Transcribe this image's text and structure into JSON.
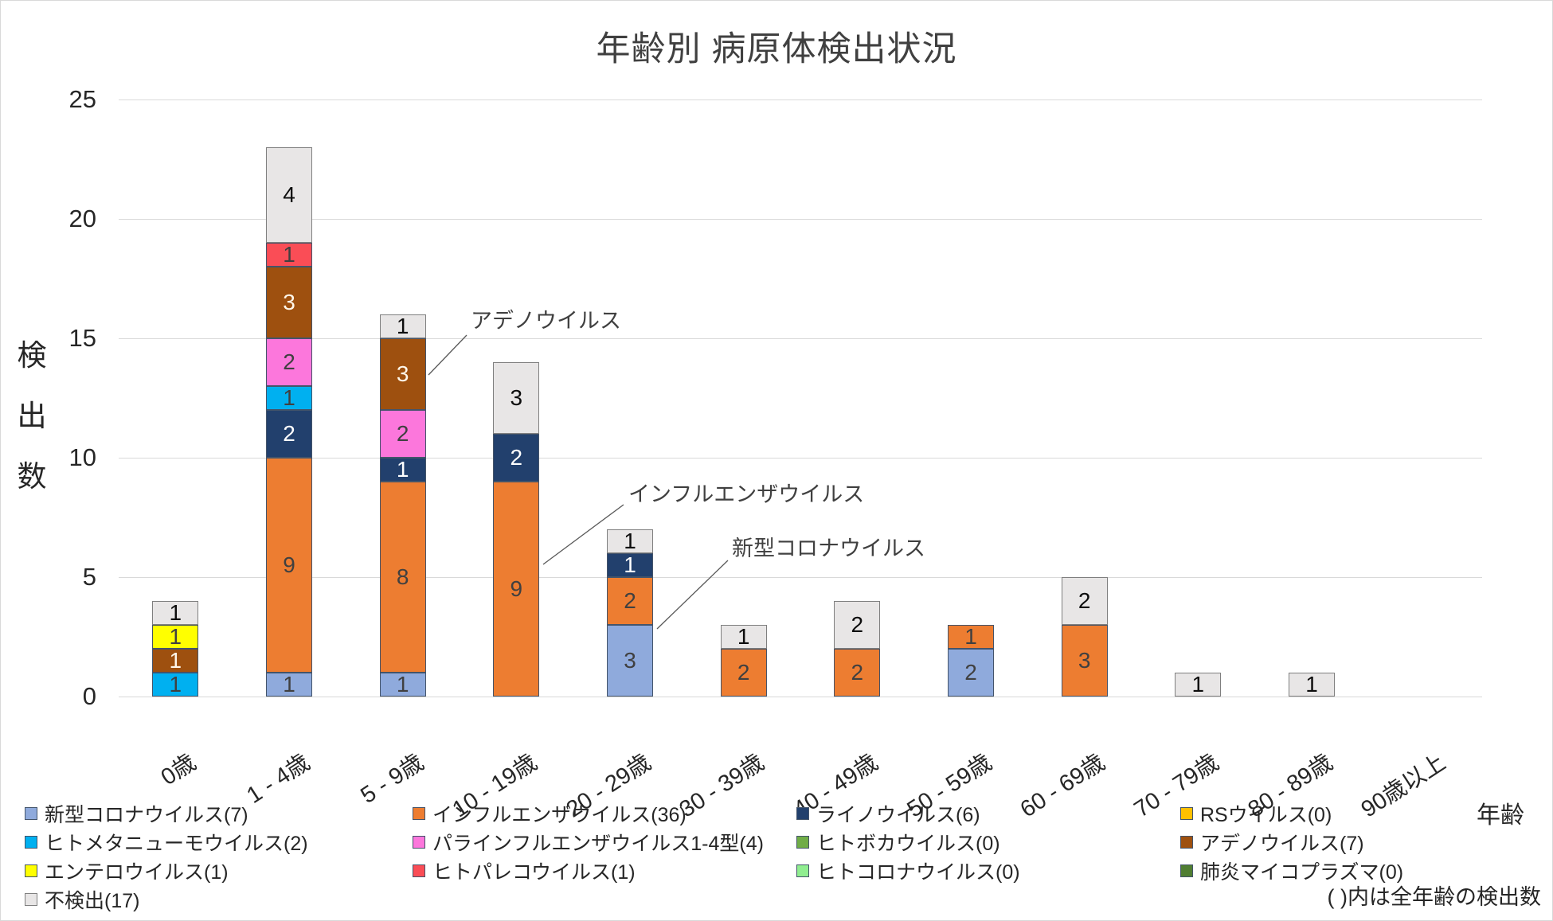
{
  "chart_data": {
    "type": "bar",
    "subtype": "stacked-vertical",
    "title": "年齢別 病原体検出状況",
    "ylabel": "検出数",
    "xlabel": "年齢",
    "ylim": [
      0,
      25
    ],
    "yticks": [
      0,
      5,
      10,
      15,
      20,
      25
    ],
    "grid": "horizontal",
    "note": "( )内は全年齢の検出数",
    "categories": [
      "0歳",
      "1 - 4歳",
      "5 - 9歳",
      "10 - 19歳",
      "20 - 29歳",
      "30 - 39歳",
      "40 - 49歳",
      "50 - 59歳",
      "60 - 69歳",
      "70 - 79歳",
      "80 - 89歳",
      "90歳以上"
    ],
    "series": [
      {
        "name": "新型コロナウイルス",
        "total": 7,
        "color": "#8FAADC",
        "border": "#44546A",
        "label_color": "#404040",
        "values": [
          0,
          1,
          1,
          0,
          3,
          0,
          0,
          2,
          0,
          0,
          0,
          0
        ]
      },
      {
        "name": "インフルエンザウイルス",
        "total": 36,
        "color": "#ED7D31",
        "border": "#44546A",
        "label_color": "#404040",
        "values": [
          0,
          9,
          8,
          9,
          2,
          2,
          2,
          1,
          3,
          0,
          0,
          0
        ]
      },
      {
        "name": "ライノウイルス",
        "total": 6,
        "color": "#22406D",
        "border": "#44546A",
        "label_color": "#FFFFFF",
        "values": [
          0,
          2,
          1,
          2,
          1,
          0,
          0,
          0,
          0,
          0,
          0,
          0
        ]
      },
      {
        "name": "RSウイルス",
        "total": 0,
        "color": "#FFC000",
        "border": "#44546A",
        "label_color": "#404040",
        "values": [
          0,
          0,
          0,
          0,
          0,
          0,
          0,
          0,
          0,
          0,
          0,
          0
        ]
      },
      {
        "name": "ヒトメタニューモウイルス",
        "total": 2,
        "color": "#00B0F0",
        "border": "#44546A",
        "label_color": "#404040",
        "values": [
          1,
          1,
          0,
          0,
          0,
          0,
          0,
          0,
          0,
          0,
          0,
          0
        ]
      },
      {
        "name": "パラインフルエンザウイルス1-4型",
        "total": 4,
        "color": "#FC77DC",
        "border": "#44546A",
        "label_color": "#404040",
        "values": [
          0,
          2,
          2,
          0,
          0,
          0,
          0,
          0,
          0,
          0,
          0,
          0
        ]
      },
      {
        "name": "ヒトボカウイルス",
        "total": 0,
        "color": "#70AD47",
        "border": "#44546A",
        "label_color": "#404040",
        "values": [
          0,
          0,
          0,
          0,
          0,
          0,
          0,
          0,
          0,
          0,
          0,
          0
        ]
      },
      {
        "name": "アデノウイルス",
        "total": 7,
        "color": "#9E500F",
        "border": "#44546A",
        "label_color": "#FFF7EA",
        "values": [
          1,
          3,
          3,
          0,
          0,
          0,
          0,
          0,
          0,
          0,
          0,
          0
        ]
      },
      {
        "name": "エンテロウイルス",
        "total": 1,
        "color": "#FFFF00",
        "border": "#44546A",
        "label_color": "#404040",
        "values": [
          1,
          0,
          0,
          0,
          0,
          0,
          0,
          0,
          0,
          0,
          0,
          0
        ]
      },
      {
        "name": "ヒトパレコウイルス",
        "total": 1,
        "color": "#FA4D56",
        "border": "#44546A",
        "label_color": "#404040",
        "values": [
          0,
          1,
          0,
          0,
          0,
          0,
          0,
          0,
          0,
          0,
          0,
          0
        ]
      },
      {
        "name": "ヒトコロナウイルス",
        "total": 0,
        "color": "#90EE90",
        "border": "#44546A",
        "label_color": "#404040",
        "values": [
          0,
          0,
          0,
          0,
          0,
          0,
          0,
          0,
          0,
          0,
          0,
          0
        ]
      },
      {
        "name": "肺炎マイコプラズマ",
        "total": 0,
        "color": "#507E32",
        "border": "#44546A",
        "label_color": "#FFFFFF",
        "values": [
          0,
          0,
          0,
          0,
          0,
          0,
          0,
          0,
          0,
          0,
          0,
          0
        ]
      },
      {
        "name": "不検出",
        "total": 17,
        "color": "#E8E6E6",
        "border": "#7F7F7F",
        "label_color": "#0D0D0D",
        "values": [
          1,
          4,
          1,
          3,
          1,
          1,
          2,
          0,
          2,
          1,
          1,
          0
        ]
      }
    ],
    "annotations": [
      {
        "text": "アデノウイルス",
        "target_series": "アデノウイルス",
        "target_category": "5 - 9歳"
      },
      {
        "text": "インフルエンザウイルス",
        "target_series": "インフルエンザウイルス",
        "target_category": "10 - 19歳"
      },
      {
        "text": "新型コロナウイルス",
        "target_series": "新型コロナウイルス",
        "target_category": "20 - 29歳"
      }
    ]
  }
}
